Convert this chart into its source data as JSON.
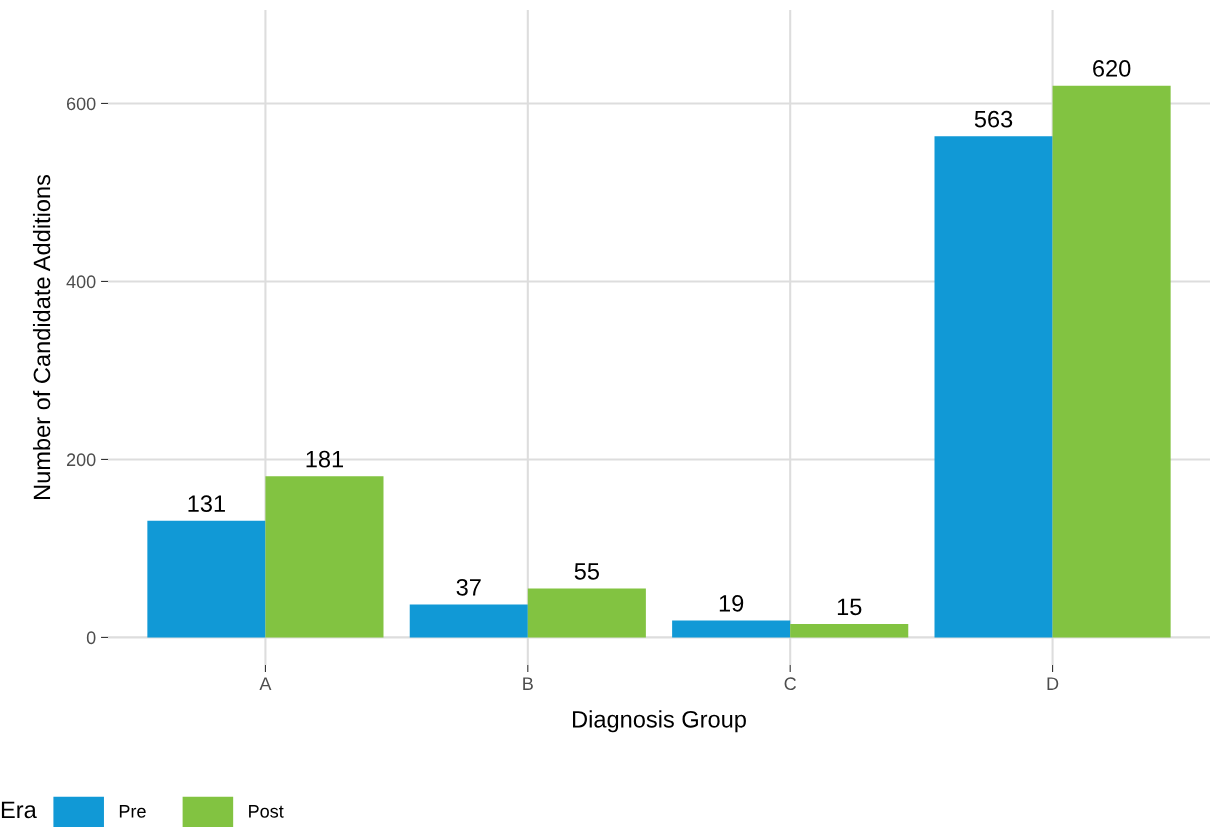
{
  "chart_data": {
    "type": "bar",
    "xlabel": "Diagnosis Group",
    "ylabel": "Number of Candidate Additions",
    "legend_title": "Era",
    "categories": [
      "A",
      "B",
      "C",
      "D"
    ],
    "series": [
      {
        "name": "Pre",
        "color": "#1199d6",
        "values": [
          131,
          37,
          19,
          563
        ]
      },
      {
        "name": "Post",
        "color": "#82c341",
        "values": [
          181,
          55,
          15,
          620
        ]
      }
    ],
    "ylim": [
      -31,
      705
    ],
    "yticks": [
      0,
      200,
      400,
      600
    ],
    "grid": true,
    "legend": "bottom",
    "data_labels": true
  }
}
